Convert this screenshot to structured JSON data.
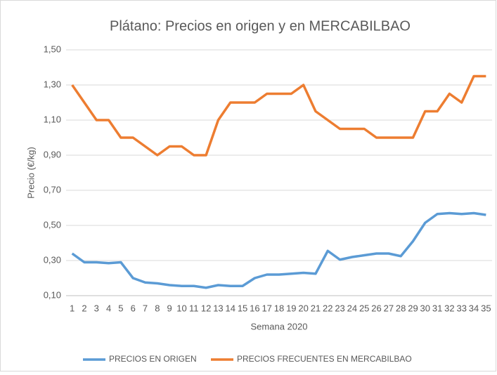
{
  "chart_data": {
    "type": "line",
    "title": "Plátano: Precios en origen y en MERCABILBAO",
    "x_label": "Semana 2020",
    "y_label": "Precio (€/kg)",
    "categories": [
      "1",
      "2",
      "3",
      "4",
      "5",
      "6",
      "7",
      "8",
      "9",
      "10",
      "11",
      "12",
      "13",
      "14",
      "15",
      "16",
      "17",
      "18",
      "19",
      "20",
      "21",
      "22",
      "23",
      "24",
      "25",
      "26",
      "27",
      "28",
      "29",
      "30",
      "31",
      "32",
      "33",
      "34",
      "35"
    ],
    "series": [
      {
        "name": "PRECIOS EN ORIGEN",
        "color": "#5b9bd5",
        "values": [
          0.34,
          0.29,
          0.29,
          0.285,
          0.29,
          0.2,
          0.175,
          0.17,
          0.16,
          0.155,
          0.155,
          0.145,
          0.16,
          0.155,
          0.155,
          0.2,
          0.22,
          0.22,
          0.225,
          0.23,
          0.225,
          0.355,
          0.305,
          0.32,
          0.33,
          0.34,
          0.34,
          0.325,
          0.41,
          0.515,
          0.565,
          0.57,
          0.565,
          0.57,
          0.56
        ]
      },
      {
        "name": "PRECIOS FRECUENTES EN MERCABILBAO",
        "color": "#ed7d31",
        "values": [
          1.3,
          1.2,
          1.1,
          1.1,
          1.0,
          1.0,
          0.95,
          0.9,
          0.95,
          0.95,
          0.9,
          0.9,
          1.1,
          1.2,
          1.2,
          1.2,
          1.25,
          1.25,
          1.25,
          1.3,
          1.15,
          1.1,
          1.05,
          1.05,
          1.05,
          1.0,
          1.0,
          1.0,
          1.0,
          1.15,
          1.15,
          1.25,
          1.2,
          1.35,
          1.35
        ]
      }
    ],
    "ylim": [
      0.1,
      1.5
    ],
    "yticks": [
      {
        "value": 0.1,
        "label": "0,10"
      },
      {
        "value": 0.3,
        "label": "0,30"
      },
      {
        "value": 0.5,
        "label": "0,50"
      },
      {
        "value": 0.7,
        "label": "0,70"
      },
      {
        "value": 0.9,
        "label": "0,90"
      },
      {
        "value": 1.1,
        "label": "1,10"
      },
      {
        "value": 1.3,
        "label": "1,30"
      },
      {
        "value": 1.5,
        "label": "1,50"
      }
    ],
    "grid": true,
    "legend": "bottom"
  }
}
